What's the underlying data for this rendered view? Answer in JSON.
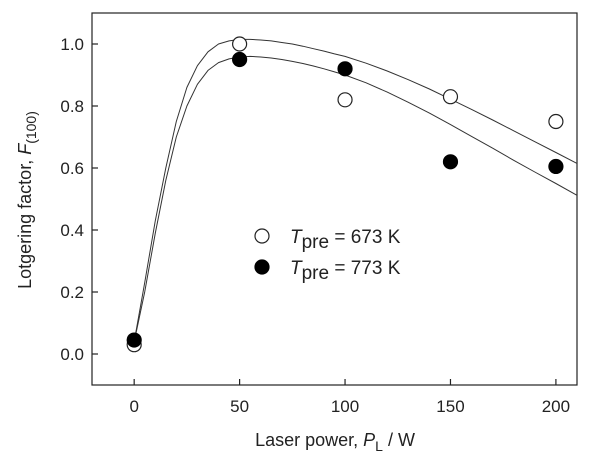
{
  "chart_data": {
    "type": "scatter",
    "title": "",
    "xlabel": {
      "prefix": "Laser power, ",
      "symbol": "P",
      "subscript": "L",
      "suffix": " / W"
    },
    "ylabel": {
      "prefix": "Lotgering factor, ",
      "symbol": "F",
      "subscript": "(100)"
    },
    "xlim": [
      -20,
      210
    ],
    "ylim": [
      -0.1,
      1.1
    ],
    "xticks": [
      "0",
      "50",
      "100",
      "150",
      "200"
    ],
    "yticks": [
      "0.0",
      "0.2",
      "0.4",
      "0.6",
      "0.8",
      "1.0"
    ],
    "grid": false,
    "legend_position": "center",
    "series": [
      {
        "marker": "open-circle",
        "legend": {
          "symbol": "T",
          "subscript": "pre",
          "text": " = 673 K"
        },
        "x": [
          0,
          50,
          100,
          150,
          200
        ],
        "y": [
          0.03,
          1.0,
          0.82,
          0.83,
          0.75
        ]
      },
      {
        "marker": "filled-circle",
        "legend": {
          "symbol": "T",
          "subscript": "pre",
          "text": " = 773 K"
        },
        "x": [
          0,
          50,
          100,
          150,
          200
        ],
        "y": [
          0.045,
          0.95,
          0.92,
          0.62,
          0.605
        ]
      }
    ],
    "fit_curves": [
      {
        "style": "thin-line",
        "x": [
          0,
          5,
          10,
          15,
          20,
          25,
          30,
          35,
          40,
          45,
          50,
          55,
          60,
          65,
          70,
          75,
          80,
          85,
          90,
          95,
          100,
          110,
          120,
          130,
          140,
          150,
          160,
          170,
          180,
          190,
          200,
          210
        ],
        "y": [
          0.04,
          0.23,
          0.43,
          0.6,
          0.75,
          0.86,
          0.93,
          0.975,
          1.0,
          1.01,
          1.015,
          1.015,
          1.013,
          1.01,
          1.005,
          1.0,
          0.993,
          0.985,
          0.977,
          0.968,
          0.96,
          0.938,
          0.913,
          0.885,
          0.855,
          0.822,
          0.789,
          0.755,
          0.72,
          0.685,
          0.65,
          0.615
        ]
      },
      {
        "style": "thin-line",
        "x": [
          0,
          5,
          10,
          15,
          20,
          25,
          30,
          35,
          40,
          45,
          50,
          55,
          60,
          65,
          70,
          75,
          80,
          85,
          90,
          95,
          100,
          110,
          120,
          130,
          140,
          150,
          160,
          170,
          180,
          190,
          200,
          210
        ],
        "y": [
          0.04,
          0.2,
          0.39,
          0.56,
          0.7,
          0.8,
          0.87,
          0.915,
          0.94,
          0.952,
          0.958,
          0.96,
          0.958,
          0.955,
          0.95,
          0.944,
          0.937,
          0.929,
          0.92,
          0.91,
          0.9,
          0.875,
          0.845,
          0.812,
          0.777,
          0.74,
          0.702,
          0.664,
          0.625,
          0.587,
          0.55,
          0.512
        ]
      }
    ]
  }
}
